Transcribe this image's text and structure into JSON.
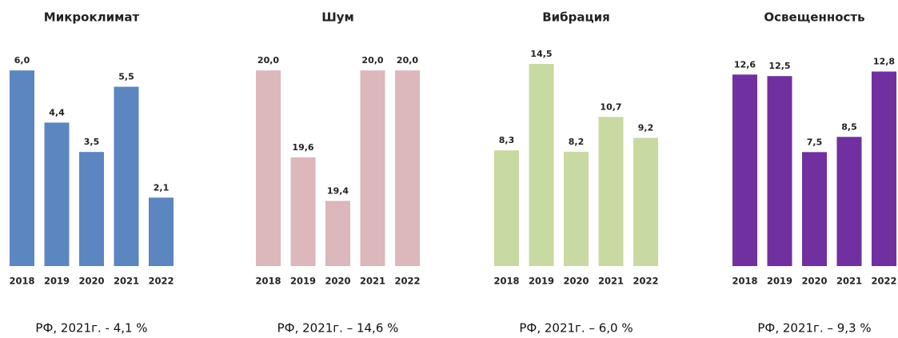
{
  "chart_data": [
    {
      "type": "bar",
      "title": "Микроклимат",
      "categories": [
        "2018",
        "2019",
        "2020",
        "2021",
        "2022"
      ],
      "values": [
        6.0,
        4.4,
        3.5,
        5.5,
        2.1
      ],
      "value_labels": [
        "6,0",
        "4,4",
        "3,5",
        "5,5",
        "2,1"
      ],
      "color": "#5b86c0",
      "ylim": [
        0,
        6.2
      ],
      "note": "РФ, 2021г. - 4,1 %"
    },
    {
      "type": "bar",
      "title": "Шум",
      "categories": [
        "2018",
        "2019",
        "2020",
        "2021",
        "2022"
      ],
      "values": [
        20.0,
        19.6,
        19.4,
        20.0,
        20.0
      ],
      "value_labels": [
        "20,0",
        "19,6",
        "19,4",
        "20,0",
        "20,0"
      ],
      "color": "#dcb7bb",
      "ylim": [
        19.1,
        20.03
      ],
      "note": "РФ, 2021г. – 14,6 %"
    },
    {
      "type": "bar",
      "title": "Вибрация",
      "categories": [
        "2018",
        "2019",
        "2020",
        "2021",
        "2022"
      ],
      "values": [
        8.3,
        14.5,
        8.2,
        10.7,
        9.2
      ],
      "value_labels": [
        "8,3",
        "14,5",
        "8,2",
        "10,7",
        "9,2"
      ],
      "color": "#c9d9a2",
      "ylim": [
        0,
        14.5
      ],
      "note": "РФ, 2021г. – 6,0 %"
    },
    {
      "type": "bar",
      "title": "Освещенность",
      "categories": [
        "2018",
        "2019",
        "2020",
        "2021",
        "2022"
      ],
      "values": [
        12.6,
        12.5,
        7.5,
        8.5,
        12.8
      ],
      "value_labels": [
        "12,6",
        "12,5",
        "7,5",
        "8,5",
        "12,8"
      ],
      "color": "#7030a0",
      "ylim": [
        0,
        13.3
      ],
      "note": "РФ, 2021г. – 9,3 %"
    }
  ]
}
